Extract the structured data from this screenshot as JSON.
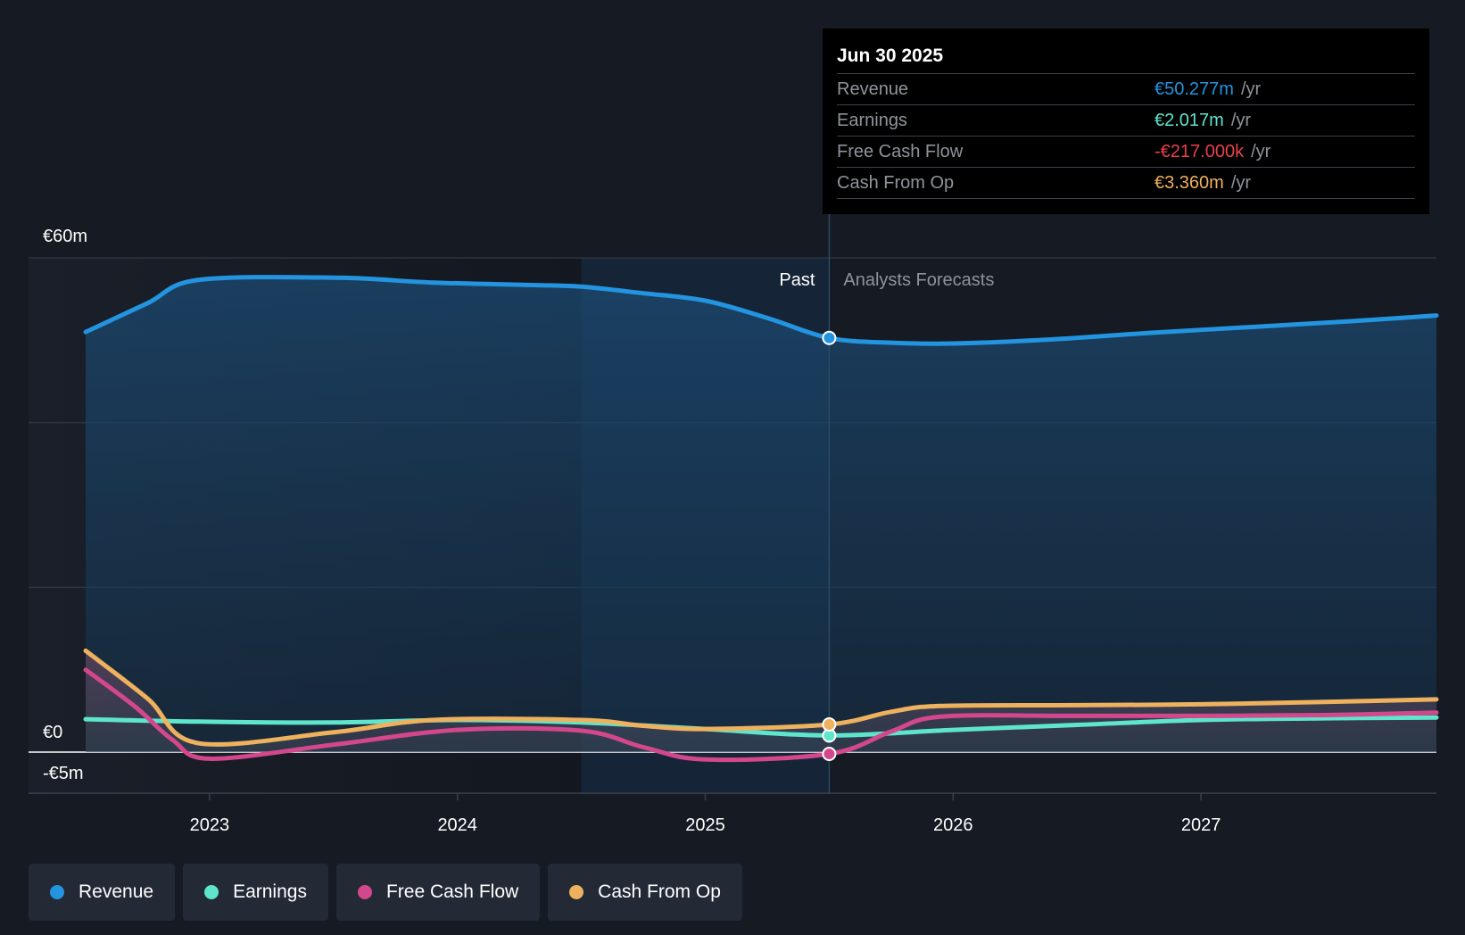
{
  "chart_data": {
    "type": "area",
    "title": "",
    "y_axis": {
      "labels": [
        "€60m",
        "€0",
        "-€5m"
      ],
      "ylim": [
        -5,
        60
      ]
    },
    "x_axis": {
      "ticks": [
        2023,
        2024,
        2025,
        2026,
        2027
      ],
      "xlim": [
        2022.5,
        2027.95
      ]
    },
    "divider": {
      "x": 2025.5,
      "past_label": "Past",
      "forecast_label": "Analysts Forecasts"
    },
    "series": [
      {
        "name": "Revenue",
        "color": "#2394df",
        "x": [
          2022.5,
          2022.75,
          2022.95,
          2023.5,
          2023.9,
          2024.3,
          2024.5,
          2024.75,
          2025.0,
          2025.25,
          2025.5,
          2025.75,
          2026.0,
          2026.4,
          2026.8,
          2027.2,
          2027.6,
          2027.95
        ],
        "y": [
          51,
          54.5,
          57.3,
          57.6,
          57,
          56.7,
          56.5,
          55.7,
          54.8,
          52.7,
          50.277,
          49.7,
          49.6,
          50.1,
          50.9,
          51.6,
          52.3,
          53
        ]
      },
      {
        "name": "Earnings",
        "color": "#5ee5cc",
        "x": [
          2022.5,
          2022.95,
          2023.5,
          2024.0,
          2024.5,
          2025.0,
          2025.5,
          2026.0,
          2026.5,
          2027.0,
          2027.5,
          2027.95
        ],
        "y": [
          4,
          3.7,
          3.6,
          3.9,
          3.6,
          2.8,
          2.017,
          2.7,
          3.3,
          3.9,
          4.1,
          4.2
        ]
      },
      {
        "name": "Free Cash Flow",
        "color": "#d3478c",
        "x": [
          2022.5,
          2022.7,
          2022.85,
          2023.0,
          2023.5,
          2024.0,
          2024.5,
          2024.75,
          2025.0,
          2025.5,
          2025.75,
          2025.95,
          2026.5,
          2027.0,
          2027.5,
          2027.95
        ],
        "y": [
          10,
          5.5,
          1.5,
          -0.8,
          0.9,
          2.7,
          2.6,
          0.6,
          -0.9,
          -0.217,
          2.5,
          4.3,
          4.4,
          4.4,
          4.5,
          4.8
        ]
      },
      {
        "name": "Cash From Op",
        "color": "#eeb15e",
        "x": [
          2022.5,
          2022.75,
          2022.95,
          2023.5,
          2023.9,
          2024.5,
          2024.75,
          2025.0,
          2025.5,
          2025.75,
          2025.95,
          2026.5,
          2027.0,
          2027.5,
          2027.95
        ],
        "y": [
          12.3,
          6.5,
          1.1,
          2.4,
          3.9,
          3.9,
          3.2,
          2.8,
          3.36,
          4.9,
          5.6,
          5.7,
          5.8,
          6.1,
          6.4
        ]
      }
    ]
  },
  "tooltip": {
    "date": "Jun 30 2025",
    "rows": [
      {
        "label": "Revenue",
        "value": "€50.277m",
        "unit": "/yr",
        "color": "#2394df"
      },
      {
        "label": "Earnings",
        "value": "€2.017m",
        "unit": "/yr",
        "color": "#5ee5cc"
      },
      {
        "label": "Free Cash Flow",
        "value": "-€217.000k",
        "unit": "/yr",
        "color": "#e8424a"
      },
      {
        "label": "Cash From Op",
        "value": "€3.360m",
        "unit": "/yr",
        "color": "#eeb15e"
      }
    ]
  },
  "legend": [
    {
      "label": "Revenue",
      "color": "#2394df"
    },
    {
      "label": "Earnings",
      "color": "#5ee5cc"
    },
    {
      "label": "Free Cash Flow",
      "color": "#d3478c"
    },
    {
      "label": "Cash From Op",
      "color": "#eeb15e"
    }
  ]
}
